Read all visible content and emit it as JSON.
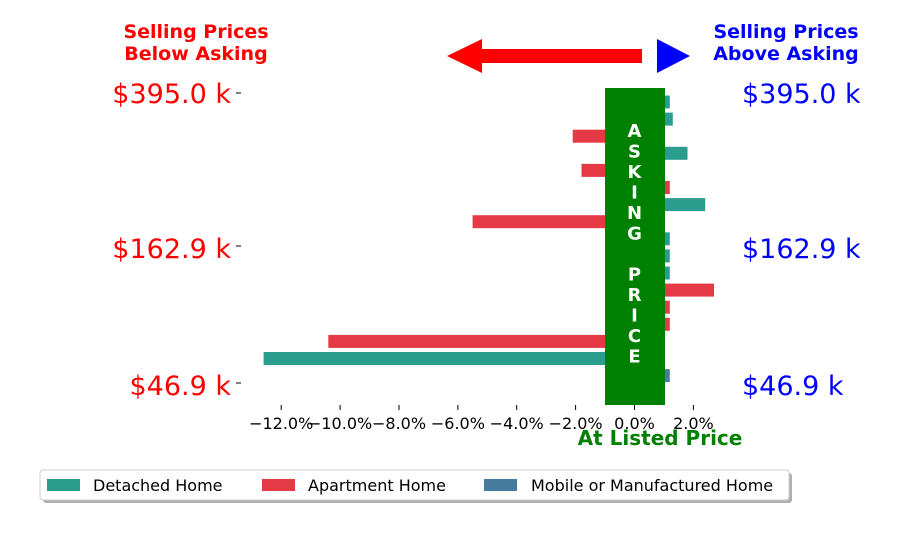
{
  "colors": {
    "detached": "#2a9d8f",
    "apartment": "#e63946",
    "mobile": "#457b9d",
    "below": "#ff0000",
    "above": "#0000ff",
    "asking": "#008000"
  },
  "headers": {
    "below_line1": "Selling Prices",
    "below_line2": "Below Asking",
    "above_line1": "Selling Prices",
    "above_line2": "Above Asking"
  },
  "price_labels": {
    "left": [
      "$395.0 k",
      "$162.9 k",
      "$46.9 k"
    ],
    "right": [
      "$395.0 k",
      "$162.9 k",
      "$46.9 k"
    ]
  },
  "asking_price_letters": [
    "A",
    "S",
    "K",
    "I",
    "N",
    "G",
    "",
    "P",
    "R",
    "I",
    "C",
    "E"
  ],
  "at_listed_price": "At Listed Price",
  "chart_data": {
    "type": "bar",
    "orientation": "horizontal",
    "xlim": [
      -13.0,
      2.8
    ],
    "xticks": [
      -12,
      -10,
      -8,
      -6,
      -4,
      -2,
      0,
      2
    ],
    "xtick_labels": [
      "−12.0%",
      "−10.0%",
      "−8.0%",
      "−6.0%",
      "−4.0%",
      "−2.0%",
      "0.0%",
      "2.0%"
    ],
    "bars": [
      {
        "series": "Detached Home",
        "value": 1.2
      },
      {
        "series": "Detached Home",
        "value": 1.3
      },
      {
        "series": "Apartment Home",
        "value": -2.1
      },
      {
        "series": "Detached Home",
        "value": 1.8
      },
      {
        "series": "Apartment Home",
        "value": -1.8
      },
      {
        "series": "Apartment Home",
        "value": 1.2
      },
      {
        "series": "Detached Home",
        "value": 2.4
      },
      {
        "series": "Apartment Home",
        "value": -5.5
      },
      {
        "series": "Detached Home",
        "value": 1.2
      },
      {
        "series": "Detached Home",
        "value": 1.2
      },
      {
        "series": "Detached Home",
        "value": 1.2
      },
      {
        "series": "Apartment Home",
        "value": 2.7
      },
      {
        "series": "Apartment Home",
        "value": 1.2
      },
      {
        "series": "Apartment Home",
        "value": 1.2
      },
      {
        "series": "Apartment Home",
        "value": -10.4
      },
      {
        "series": "Detached Home",
        "value": -12.6
      },
      {
        "series": "Mobile or Manufactured Home",
        "value": 1.2
      }
    ],
    "legend": [
      "Detached Home",
      "Apartment Home",
      "Mobile or Manufactured Home"
    ],
    "legend_position": "bottom",
    "grid": false
  }
}
